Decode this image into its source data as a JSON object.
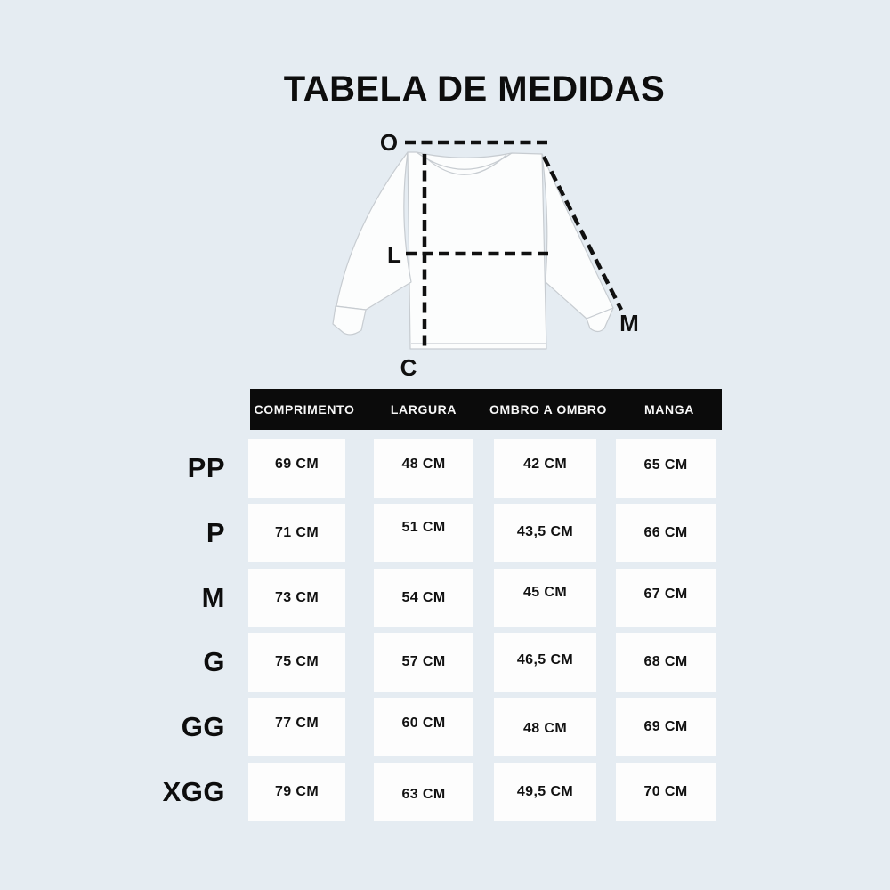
{
  "title": "TABELA DE MEDIDAS",
  "diagram": {
    "labels": {
      "shoulder": "O",
      "width": "L",
      "length": "C",
      "sleeve": "M"
    }
  },
  "table": {
    "columns": [
      "COMPRIMENTO",
      "LARGURA",
      "OMBRO A OMBRO",
      "MANGA"
    ],
    "rows": [
      {
        "size": "PP",
        "values": [
          "69 CM",
          "48 CM",
          "42 CM",
          "65 CM"
        ]
      },
      {
        "size": "P",
        "values": [
          "71 CM",
          "51 CM",
          "43,5 CM",
          "66 CM"
        ]
      },
      {
        "size": "M",
        "values": [
          "73 CM",
          "54 CM",
          "45 CM",
          "67 CM"
        ]
      },
      {
        "size": "G",
        "values": [
          "75 CM",
          "57 CM",
          "46,5 CM",
          "68 CM"
        ]
      },
      {
        "size": "GG",
        "values": [
          "77 CM",
          "60 CM",
          "48 CM",
          "69 CM"
        ]
      },
      {
        "size": "XGG",
        "values": [
          "79 CM",
          "63 CM",
          "49,5 CM",
          "70 CM"
        ]
      }
    ]
  },
  "colors": {
    "background": "#e5ecf2",
    "header_bg": "#0b0b0b",
    "cell_bg": "#fdfdfd",
    "text": "#0d0d0d",
    "garment_outline": "#c7ccd1",
    "dash_line": "#101010"
  }
}
